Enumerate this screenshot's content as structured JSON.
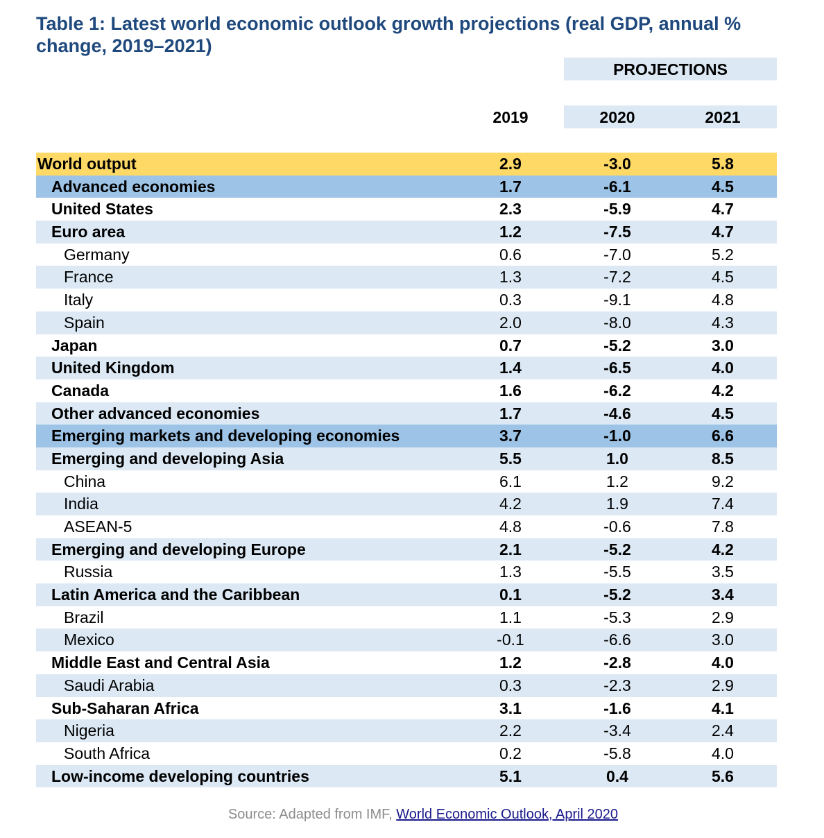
{
  "title": "Table 1: Latest world economic outlook growth projections (real GDP, annual % change, 2019–2021)",
  "projections_label": "PROJECTIONS",
  "years": [
    "2019",
    "2020",
    "2021"
  ],
  "chart_data": {
    "type": "table",
    "title": "Table 1: Latest world economic outlook growth projections (real GDP, annual % change, 2019–2021)",
    "columns": [
      "2019",
      "2020",
      "2021"
    ],
    "rows": [
      {
        "label": "World output",
        "level": 0,
        "style": "world",
        "values": [
          "2.9",
          "-3.0",
          "5.8"
        ]
      },
      {
        "label": "Advanced economies",
        "level": 1,
        "style": "region",
        "values": [
          "1.7",
          "-6.1",
          "4.5"
        ]
      },
      {
        "label": "United States",
        "level": 1,
        "style": "bold",
        "values": [
          "2.3",
          "-5.9",
          "4.7"
        ]
      },
      {
        "label": "Euro area",
        "level": 1,
        "style": "bold",
        "values": [
          "1.2",
          "-7.5",
          "4.7"
        ]
      },
      {
        "label": "Germany",
        "level": 2,
        "style": "plain",
        "values": [
          "0.6",
          "-7.0",
          "5.2"
        ]
      },
      {
        "label": "France",
        "level": 2,
        "style": "plain",
        "values": [
          "1.3",
          "-7.2",
          "4.5"
        ]
      },
      {
        "label": "Italy",
        "level": 2,
        "style": "plain",
        "values": [
          "0.3",
          "-9.1",
          "4.8"
        ]
      },
      {
        "label": "Spain",
        "level": 2,
        "style": "plain",
        "values": [
          "2.0",
          "-8.0",
          "4.3"
        ]
      },
      {
        "label": "Japan",
        "level": 1,
        "style": "bold",
        "values": [
          "0.7",
          "-5.2",
          "3.0"
        ]
      },
      {
        "label": "United Kingdom",
        "level": 1,
        "style": "bold",
        "values": [
          "1.4",
          "-6.5",
          "4.0"
        ]
      },
      {
        "label": "Canada",
        "level": 1,
        "style": "bold",
        "values": [
          "1.6",
          "-6.2",
          "4.2"
        ]
      },
      {
        "label": "Other advanced economies",
        "level": 1,
        "style": "bold",
        "values": [
          "1.7",
          "-4.6",
          "4.5"
        ]
      },
      {
        "label": "Emerging markets and developing economies",
        "level": 1,
        "style": "region",
        "values": [
          "3.7",
          "-1.0",
          "6.6"
        ]
      },
      {
        "label": "Emerging and developing Asia",
        "level": 1,
        "style": "bold",
        "values": [
          "5.5",
          "1.0",
          "8.5"
        ]
      },
      {
        "label": "China",
        "level": 2,
        "style": "plain",
        "values": [
          "6.1",
          "1.2",
          "9.2"
        ]
      },
      {
        "label": "India",
        "level": 2,
        "style": "plain",
        "values": [
          "4.2",
          "1.9",
          "7.4"
        ]
      },
      {
        "label": "ASEAN-5",
        "level": 2,
        "style": "plain",
        "values": [
          "4.8",
          "-0.6",
          "7.8"
        ]
      },
      {
        "label": "Emerging and developing Europe",
        "level": 1,
        "style": "bold",
        "values": [
          "2.1",
          "-5.2",
          "4.2"
        ]
      },
      {
        "label": "Russia",
        "level": 2,
        "style": "plain",
        "values": [
          "1.3",
          "-5.5",
          "3.5"
        ]
      },
      {
        "label": "Latin America and the Caribbean",
        "level": 1,
        "style": "bold",
        "values": [
          "0.1",
          "-5.2",
          "3.4"
        ]
      },
      {
        "label": "Brazil",
        "level": 2,
        "style": "plain",
        "values": [
          "1.1",
          "-5.3",
          "2.9"
        ]
      },
      {
        "label": "Mexico",
        "level": 2,
        "style": "plain",
        "values": [
          "-0.1",
          "-6.6",
          "3.0"
        ]
      },
      {
        "label": "Middle East and Central Asia",
        "level": 1,
        "style": "bold",
        "values": [
          "1.2",
          "-2.8",
          "4.0"
        ]
      },
      {
        "label": "Saudi Arabia",
        "level": 2,
        "style": "plain",
        "values": [
          "0.3",
          "-2.3",
          "2.9"
        ]
      },
      {
        "label": "Sub-Saharan Africa",
        "level": 1,
        "style": "bold",
        "values": [
          "3.1",
          "-1.6",
          "4.1"
        ]
      },
      {
        "label": "Nigeria",
        "level": 2,
        "style": "plain",
        "values": [
          "2.2",
          "-3.4",
          "2.4"
        ]
      },
      {
        "label": "South Africa",
        "level": 2,
        "style": "plain",
        "values": [
          "0.2",
          "-5.8",
          "4.0"
        ]
      },
      {
        "label": "Low-income developing countries",
        "level": 1,
        "style": "bold",
        "values": [
          "5.1",
          "0.4",
          "5.6"
        ]
      }
    ]
  },
  "source": {
    "prefix": "Source: Adapted from IMF, ",
    "link_text": "World Economic Outlook, April 2020 "
  },
  "colors": {
    "title": "#1f497d",
    "world_row": "#ffd966",
    "region_row": "#9dc3e6",
    "alt_row": "#dce9f5"
  }
}
